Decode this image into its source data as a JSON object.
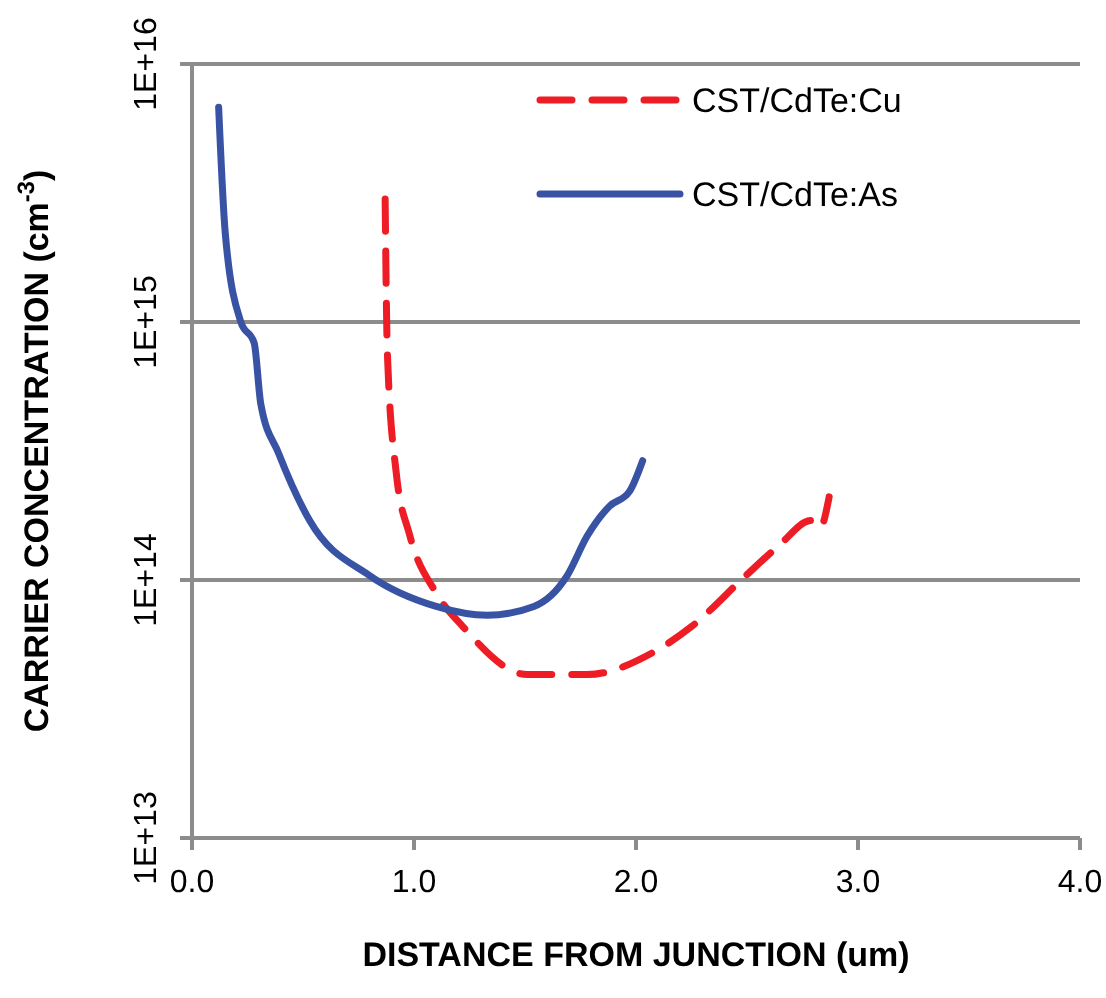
{
  "chart_data": {
    "type": "line",
    "xlabel": "DISTANCE FROM JUNCTION (um)",
    "ylabel": "CARRIER CONCENTRATION (cm$^{-3}$)",
    "log": "y",
    "grid": "y",
    "legend": "top right",
    "marker": "none",
    "xlim": [
      0,
      4
    ],
    "xticks": [
      {
        "value": 0,
        "label": "0.0"
      },
      {
        "value": 1,
        "label": "1.0"
      },
      {
        "value": 2,
        "label": "2.0"
      },
      {
        "value": 3,
        "label": "3.0"
      },
      {
        "value": 4,
        "label": "4.0"
      }
    ],
    "ylim": [
      10000000000000.0,
      1e+16
    ],
    "yticks": [
      {
        "value": 10000000000000.0,
        "label": "1E+13"
      },
      {
        "value": 100000000000000.0,
        "label": "1E+14"
      },
      {
        "value": 1000000000000000.0,
        "label": "1E+15"
      },
      {
        "value": 1e+16,
        "label": "1E+16"
      }
    ],
    "series": [
      {
        "name": "CST/CdTe:Cu",
        "color": "#ee1c25",
        "line_style": "dashed",
        "x": [
          0.87,
          0.88,
          0.92,
          0.98,
          1.1,
          1.22,
          1.51,
          1.78,
          2.07,
          2.25,
          2.49,
          2.64,
          2.79,
          2.83,
          2.87
        ],
        "values": [
          3000000000000000.0,
          760000000000000.0,
          260000000000000.0,
          150000000000000.0,
          89000000000000.0,
          66000000000000.0,
          43000000000000.0,
          43000000000000.0,
          52000000000000.0,
          66000000000000.0,
          103000000000000.0,
          135000000000000.0,
          170000000000000.0,
          160000000000000.0,
          210000000000000.0
        ]
      },
      {
        "name": "CST/CdTe:As",
        "color": "#3953a4",
        "line_style": "solid",
        "x": [
          0.12,
          0.15,
          0.22,
          0.28,
          0.31,
          0.39,
          0.53,
          0.8,
          1.1,
          1.33,
          1.54,
          1.69,
          1.78,
          1.88,
          1.97,
          2.03
        ],
        "values": [
          6800000000000000.0,
          2200000000000000.0,
          1000000000000000.0,
          830000000000000.0,
          480000000000000.0,
          310000000000000.0,
          170000000000000.0,
          104000000000000.0,
          79000000000000.0,
          73000000000000.0,
          79000000000000.0,
          104000000000000.0,
          148000000000000.0,
          193000000000000.0,
          220000000000000.0,
          290000000000000.0
        ]
      }
    ]
  }
}
